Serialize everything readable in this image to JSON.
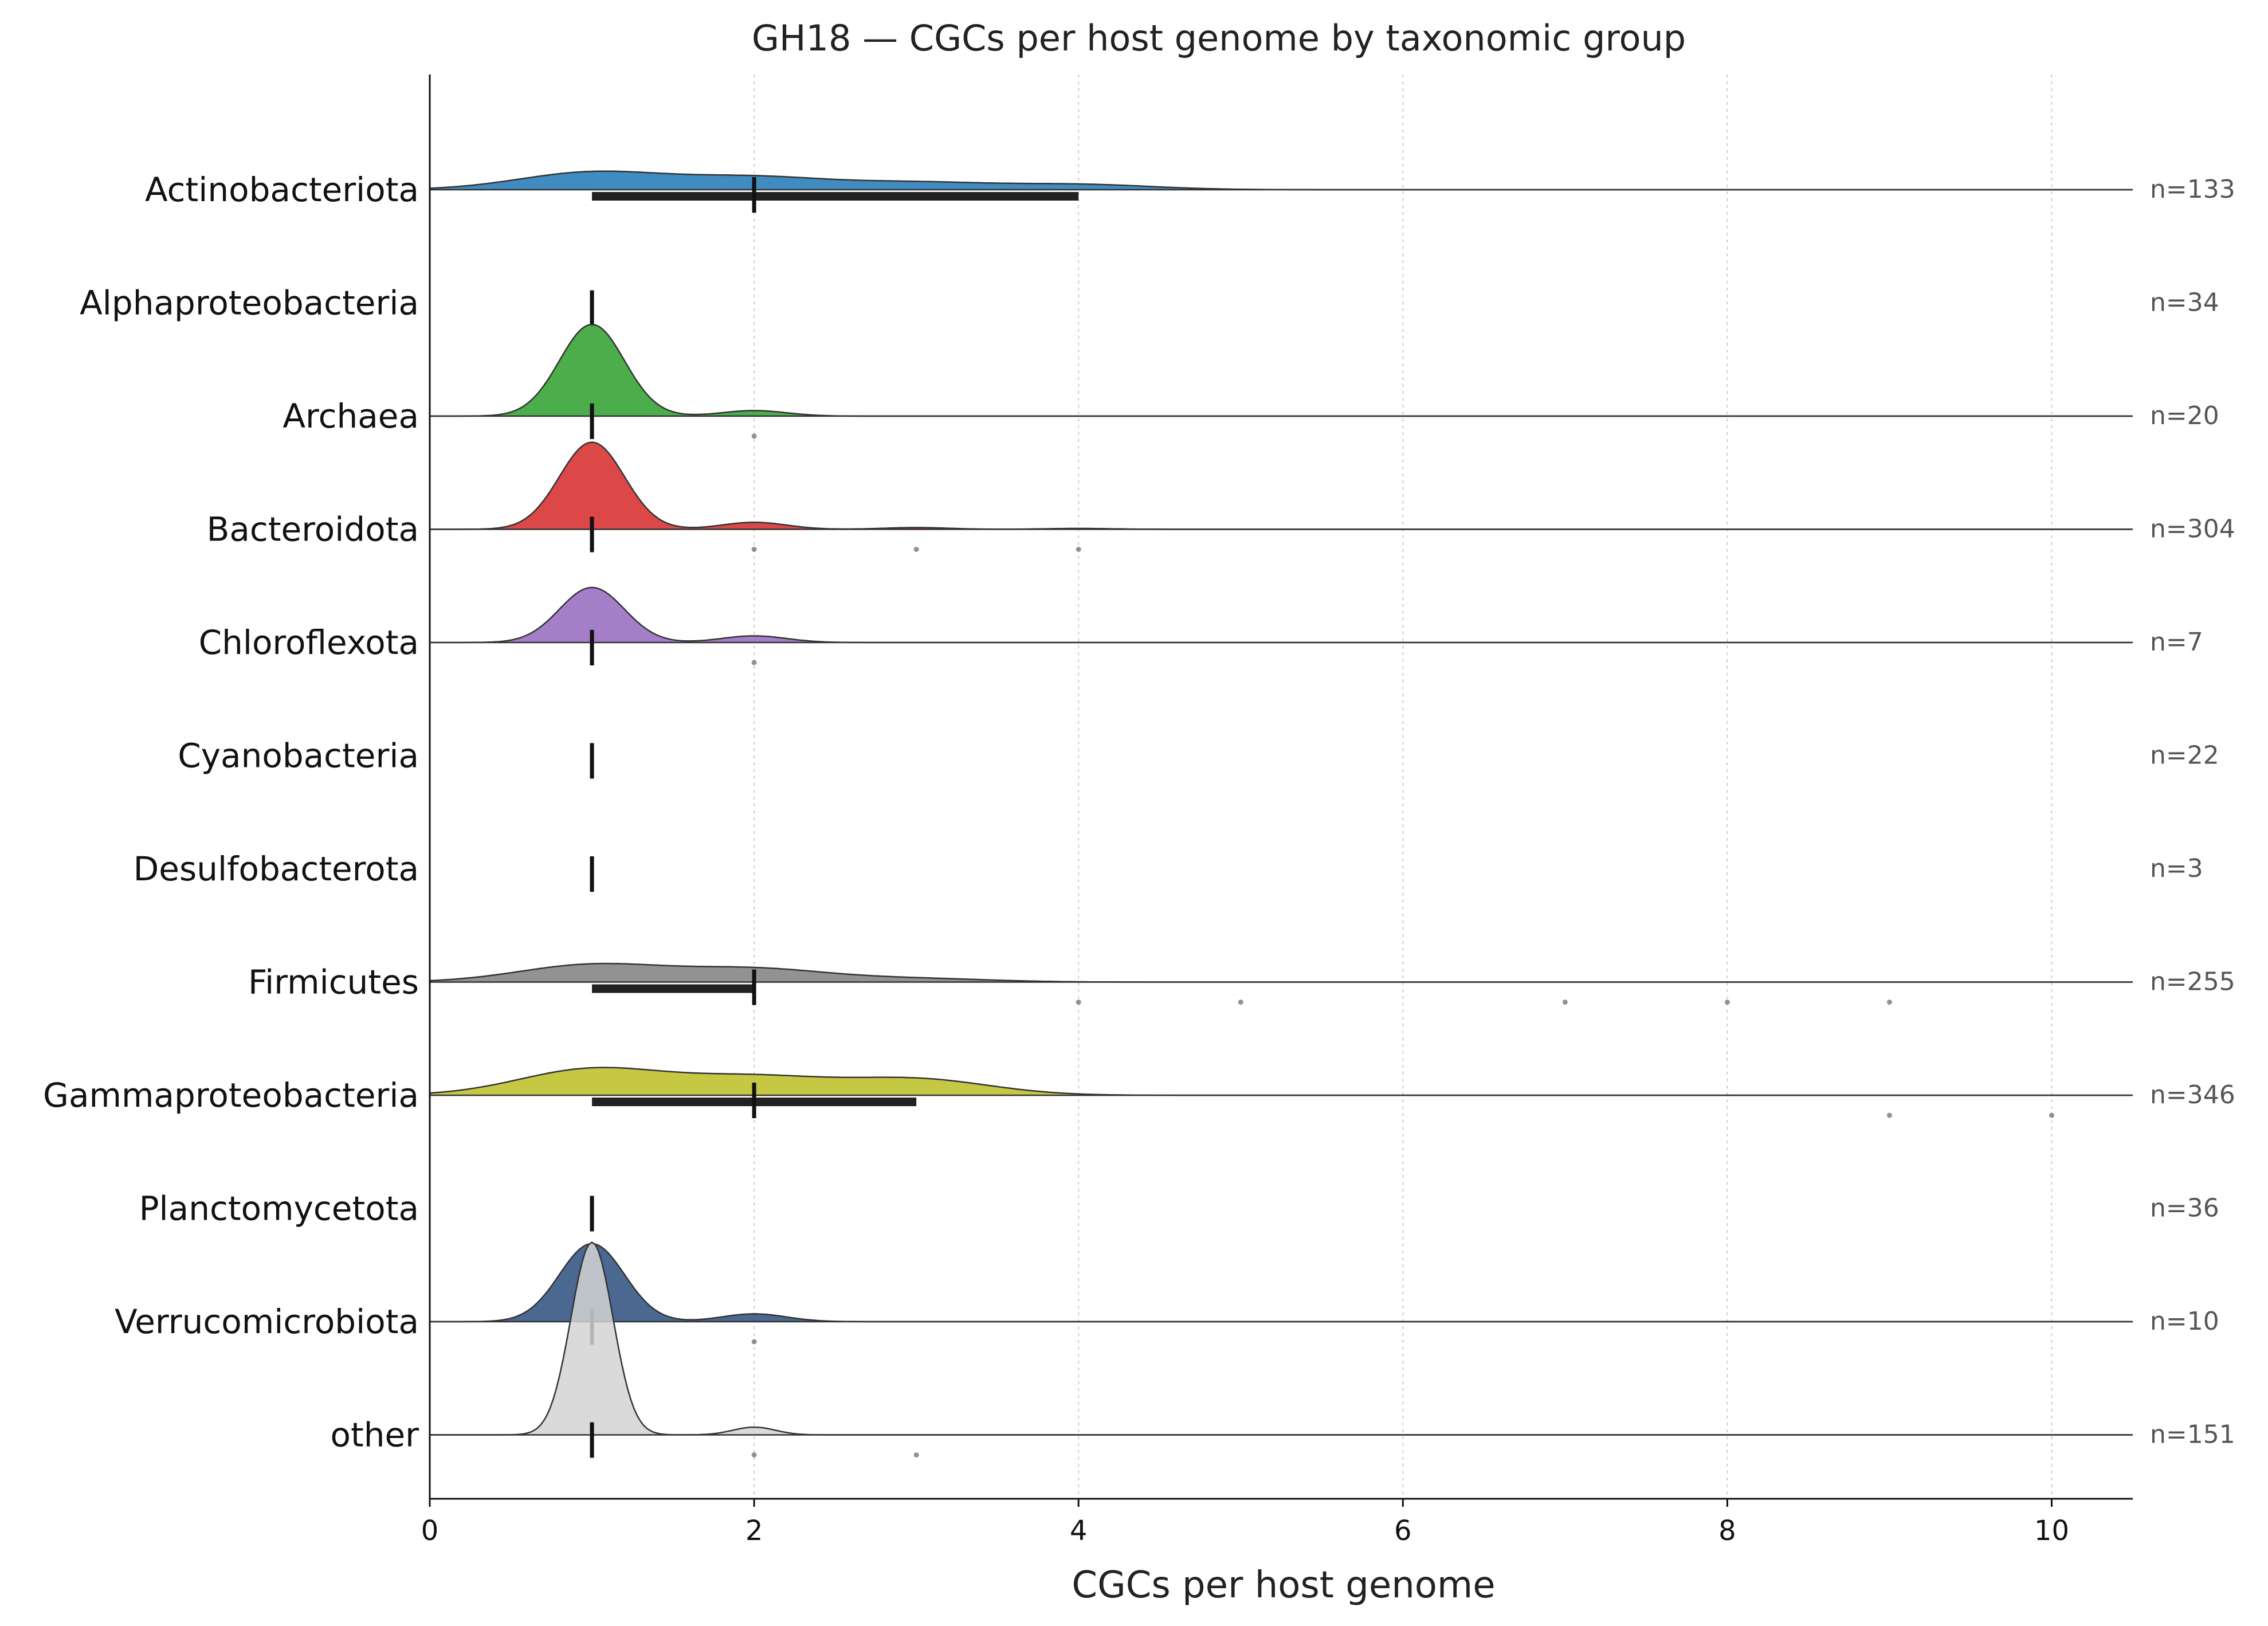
{
  "chart_data": {
    "type": "ridgeline",
    "title": "GH18 — CGCs per host genome by taxonomic group",
    "xlabel": "CGCs per host genome",
    "ylabel": "",
    "xlim": [
      0,
      10.5
    ],
    "xticks": [
      0,
      2,
      4,
      6,
      8,
      10
    ],
    "grid": "vertical dotted",
    "groups": [
      {
        "name": "Actinobacteriota",
        "n_label": "n=133",
        "color": "#1f77b4",
        "median": 2,
        "q1": 1,
        "q3": 4,
        "height": 0.04,
        "modes": [
          [
            1,
            0.5
          ],
          [
            2,
            0.35
          ],
          [
            3,
            0.2
          ],
          [
            4,
            0.15
          ]
        ],
        "outliers": []
      },
      {
        "name": "Alphaproteobacteria",
        "n_label": "n=34",
        "color": "#ff7f0e",
        "median": 1,
        "q1": 1,
        "q3": 1,
        "height": 0,
        "modes": [],
        "outliers": []
      },
      {
        "name": "Archaea",
        "n_label": "n=20",
        "color": "#2ca02c",
        "median": 1,
        "q1": 1,
        "q3": 1,
        "height": 0.2,
        "modes": [
          [
            1,
            1.0
          ],
          [
            2,
            0.06
          ]
        ],
        "outliers": [
          2
        ]
      },
      {
        "name": "Bacteroidota",
        "n_label": "n=304",
        "color": "#d62728",
        "median": 1,
        "q1": 1,
        "q3": 1,
        "height": 0.19,
        "modes": [
          [
            1,
            1.0
          ],
          [
            2,
            0.08
          ],
          [
            3,
            0.02
          ],
          [
            4,
            0.01
          ]
        ],
        "outliers": [
          2,
          3,
          4
        ]
      },
      {
        "name": "Chloroflexota",
        "n_label": "n=7",
        "color": "#9467bd",
        "median": 1,
        "q1": 1,
        "q3": 1,
        "height": 0.12,
        "modes": [
          [
            1,
            1.0
          ],
          [
            2,
            0.12
          ]
        ],
        "outliers": [
          2
        ]
      },
      {
        "name": "Cyanobacteria",
        "n_label": "n=22",
        "color": "#8c564b",
        "median": 1,
        "q1": 1,
        "q3": 1,
        "height": 0,
        "modes": [],
        "outliers": []
      },
      {
        "name": "Desulfobacterota",
        "n_label": "n=3",
        "color": "#e377c2",
        "median": 1,
        "q1": 1,
        "q3": 1,
        "height": 0,
        "modes": [],
        "outliers": []
      },
      {
        "name": "Firmicutes",
        "n_label": "n=255",
        "color": "#7f7f7f",
        "median": 2,
        "q1": 1,
        "q3": 2,
        "height": 0.04,
        "modes": [
          [
            1,
            0.6
          ],
          [
            2,
            0.45
          ],
          [
            3,
            0.12
          ]
        ],
        "outliers": [
          4,
          5,
          7,
          8,
          9
        ]
      },
      {
        "name": "Gammaproteobacteria",
        "n_label": "n=346",
        "color": "#bcbd22",
        "median": 2,
        "q1": 1,
        "q3": 3,
        "height": 0.06,
        "modes": [
          [
            1,
            0.9
          ],
          [
            2,
            0.6
          ],
          [
            3,
            0.55
          ]
        ],
        "outliers": [
          9,
          10
        ]
      },
      {
        "name": "Planctomycetota",
        "n_label": "n=36",
        "color": "#17becf",
        "median": 1,
        "q1": 1,
        "q3": 1,
        "height": 0,
        "modes": [],
        "outliers": []
      },
      {
        "name": "Verrucomicrobiota",
        "n_label": "n=10",
        "color": "#2c4d7e",
        "median": 1,
        "q1": 1,
        "q3": 1,
        "height": 0.17,
        "modes": [
          [
            1,
            1.0
          ],
          [
            2,
            0.1
          ]
        ],
        "outliers": [
          2
        ]
      },
      {
        "name": "other",
        "n_label": "n=151",
        "color": "#d3d3d3",
        "median": 1,
        "q1": 1,
        "q3": 1,
        "height": 0.42,
        "modes": [
          [
            1,
            1.0
          ],
          [
            2,
            0.04
          ]
        ],
        "outliers": [
          2,
          3
        ]
      }
    ]
  }
}
